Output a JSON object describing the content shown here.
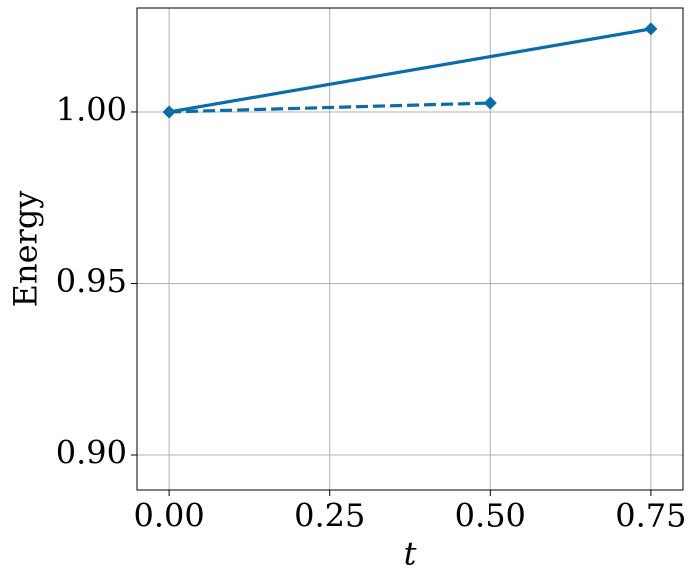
{
  "chart_data": {
    "type": "line",
    "xlabel": "t",
    "ylabel": "Energy",
    "series": [
      {
        "color": "#0a6cab",
        "linestyle": "solid",
        "marker": "diamond",
        "x": [
          0,
          0.75
        ],
        "values": [
          1.0,
          1.0242
        ]
      },
      {
        "color": "#0a6cab",
        "linestyle": "dashed",
        "marker": "diamond",
        "x": [
          0,
          0.5
        ],
        "values": [
          1.0,
          1.0026
        ]
      }
    ],
    "xlim": [
      -0.05,
      0.8
    ],
    "ylim": [
      0.8898,
      1.0303
    ],
    "xticks": [
      {
        "value": 0,
        "label": "0.00"
      },
      {
        "value": 0.25,
        "label": "0.25"
      },
      {
        "value": 0.5,
        "label": "0.50"
      },
      {
        "value": 0.75,
        "label": "0.75"
      }
    ],
    "yticks": [
      {
        "value": 0.9,
        "label": "0.90"
      },
      {
        "value": 0.95,
        "label": "0.95"
      },
      {
        "value": 1.0,
        "label": "1.00"
      }
    ],
    "grid": true
  }
}
